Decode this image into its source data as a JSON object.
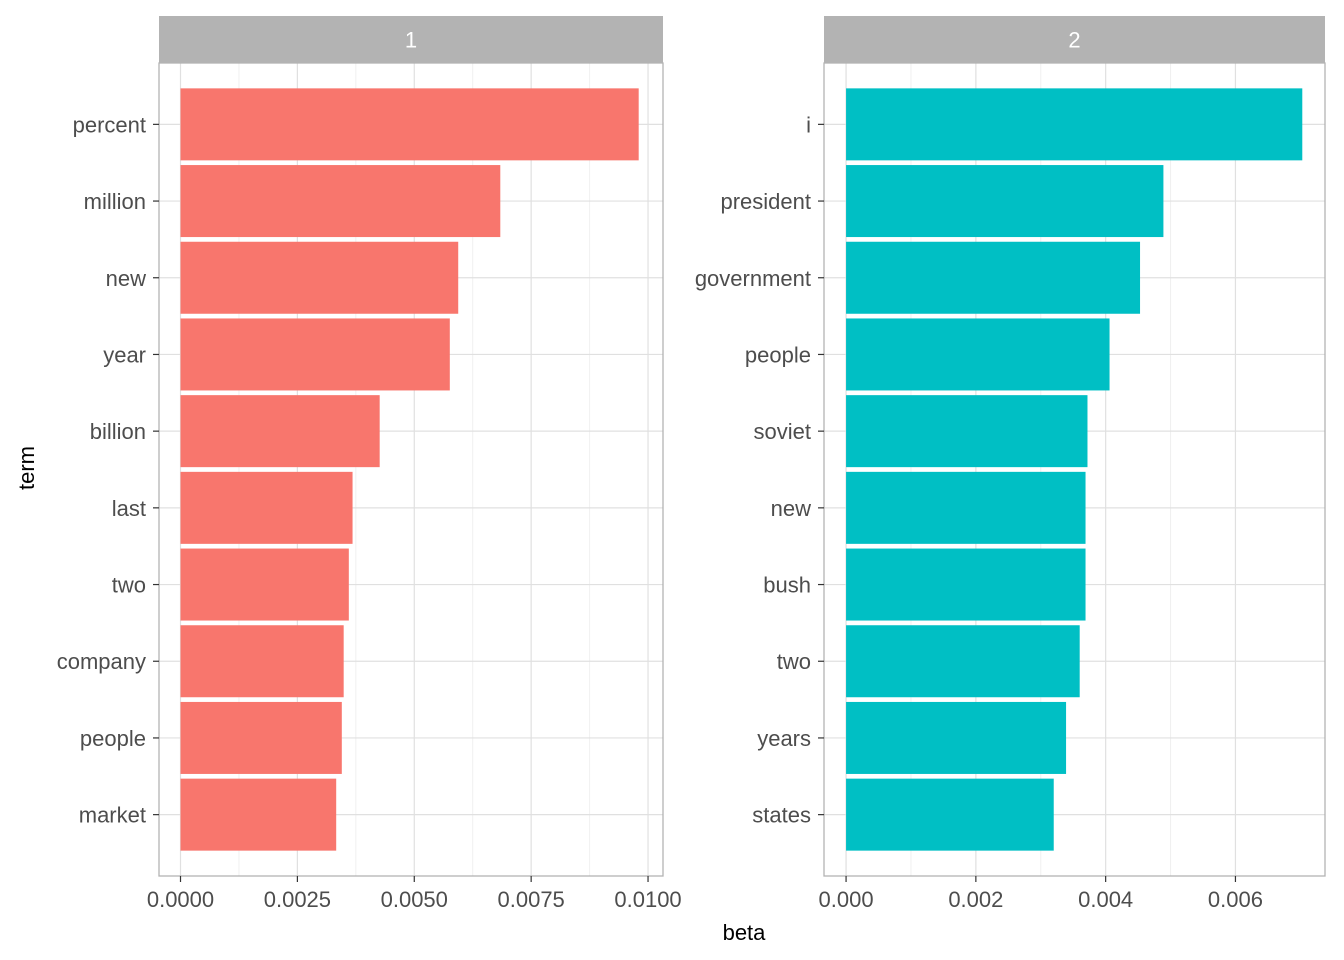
{
  "chart_data": {
    "type": "bar",
    "orientation": "horizontal",
    "xlabel": "beta",
    "ylabel": "term",
    "grid": true,
    "facets": [
      {
        "strip_label": "1",
        "color": "#F8766D",
        "categories": [
          "percent",
          "million",
          "new",
          "year",
          "billion",
          "last",
          "two",
          "company",
          "people",
          "market"
        ],
        "values": [
          0.0098,
          0.00684,
          0.00594,
          0.00576,
          0.00426,
          0.00368,
          0.0036,
          0.00349,
          0.00345,
          0.00333
        ],
        "xlim": [
          -0.00046,
          0.01032
        ],
        "xticks": [
          0,
          0.0025,
          0.005,
          0.0075,
          0.01
        ],
        "xtick_labels": [
          "0.0000",
          "0.0025",
          "0.0050",
          "0.0075",
          "0.0100"
        ]
      },
      {
        "strip_label": "2",
        "color": "#00BFC4",
        "categories": [
          "i",
          "president",
          "government",
          "people",
          "soviet",
          "new",
          "bush",
          "two",
          "years",
          "states"
        ],
        "values": [
          0.00703,
          0.00489,
          0.00453,
          0.00406,
          0.00372,
          0.00369,
          0.00369,
          0.0036,
          0.00339,
          0.0032
        ],
        "xlim": [
          -0.00034,
          0.00738
        ],
        "xticks": [
          0,
          0.002,
          0.004,
          0.006
        ],
        "xtick_labels": [
          "0.000",
          "0.002",
          "0.004",
          "0.006"
        ]
      }
    ]
  }
}
